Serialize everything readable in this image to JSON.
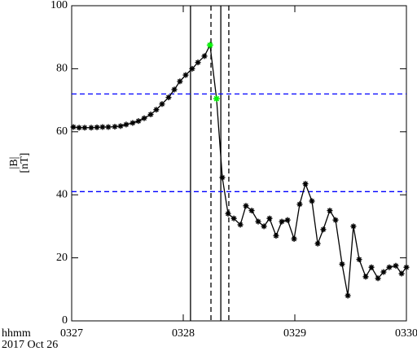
{
  "chart_data": {
    "type": "line",
    "ylabel": [
      "|B|",
      "[nT]"
    ],
    "xlabel_lines": [
      "hhmm",
      "2017 Oct 26"
    ],
    "xlim": [
      0,
      180
    ],
    "xticks": [
      {
        "value": 0,
        "label": "0327"
      },
      {
        "value": 60,
        "label": "0328"
      },
      {
        "value": 120,
        "label": "0329"
      },
      {
        "value": 180,
        "label": "0330"
      }
    ],
    "ylim": [
      0,
      100
    ],
    "yticks": [
      0,
      20,
      40,
      60,
      80,
      100
    ],
    "x": [
      0.9,
      4.0,
      7.0,
      10.5,
      13.6,
      16.6,
      19.7,
      23.2,
      26.3,
      29.3,
      32.8,
      35.9,
      39.0,
      42.5,
      45.5,
      48.6,
      52.1,
      55.2,
      58.2,
      61.3,
      64.8,
      67.9,
      71.4,
      74.4,
      77.9,
      81.0,
      84.1,
      87.2,
      90.7,
      93.7,
      96.8,
      100.3,
      103.4,
      106.4,
      109.9,
      113.0,
      116.1,
      119.6,
      122.6,
      125.7,
      129.2,
      132.3,
      135.3,
      138.8,
      141.9,
      145.4,
      148.5,
      151.5,
      154.6,
      158.1,
      161.2,
      164.7,
      167.7,
      170.8,
      174.3,
      177.4,
      180.0
    ],
    "series": [
      {
        "color": "#000000",
        "values": [
          61.5,
          61.3,
          61.3,
          61.3,
          61.4,
          61.5,
          61.5,
          61.6,
          61.8,
          62.3,
          62.8,
          63.4,
          64.3,
          65.5,
          67,
          68.8,
          70.9,
          73.4,
          76,
          78,
          80,
          82,
          84,
          87.5,
          70.5,
          45.5,
          34,
          32.5,
          30.5,
          36.5,
          35,
          31.5,
          30,
          32.5,
          27,
          31.5,
          32,
          26,
          37,
          43.5,
          38,
          24.5,
          29,
          35,
          32,
          18,
          8,
          30,
          19.5,
          14,
          17,
          13.5,
          15.5,
          17,
          17.5,
          15,
          17
        ]
      }
    ],
    "highlight": {
      "color": "#00ff00",
      "x": [
        74.4,
        77.9
      ],
      "values": [
        87.5,
        70.5
      ]
    },
    "vlines": [
      {
        "value": 63.9,
        "style": "solid"
      },
      {
        "value": 80.2,
        "style": "solid"
      },
      {
        "value": 74.9,
        "style": "dashed"
      },
      {
        "value": 84.5,
        "style": "dashed"
      }
    ],
    "hlines": {
      "color": "#0000ff",
      "style": "dashed",
      "values": [
        72,
        41
      ]
    }
  }
}
